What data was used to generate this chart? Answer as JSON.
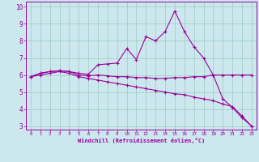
{
  "xlabel": "Windchill (Refroidissement éolien,°C)",
  "bg_color": "#cce8ee",
  "line_color": "#990099",
  "grid_color": "#99ccbb",
  "x_values": [
    0,
    1,
    2,
    3,
    4,
    5,
    6,
    7,
    8,
    9,
    10,
    11,
    12,
    13,
    14,
    15,
    16,
    17,
    18,
    19,
    20,
    21,
    22,
    23
  ],
  "line1_y": [
    5.9,
    6.1,
    6.2,
    6.25,
    6.2,
    6.1,
    6.05,
    6.6,
    6.65,
    6.7,
    7.55,
    6.9,
    8.25,
    8.0,
    8.55,
    9.75,
    8.55,
    7.65,
    7.0,
    6.0,
    4.6,
    4.1,
    3.5,
    3.0
  ],
  "line2_y": [
    5.9,
    6.1,
    6.2,
    6.25,
    6.2,
    6.0,
    5.95,
    6.0,
    5.95,
    5.9,
    5.9,
    5.85,
    5.85,
    5.8,
    5.8,
    5.85,
    5.85,
    5.9,
    5.9,
    6.0,
    6.0,
    6.0,
    6.0,
    6.0
  ],
  "line3_y": [
    5.9,
    6.0,
    6.1,
    6.2,
    6.1,
    5.9,
    5.8,
    5.7,
    5.6,
    5.5,
    5.4,
    5.3,
    5.2,
    5.1,
    5.0,
    4.9,
    4.85,
    4.7,
    4.6,
    4.5,
    4.3,
    4.15,
    3.6,
    3.0
  ],
  "ylim": [
    2.8,
    10.3
  ],
  "xlim": [
    -0.5,
    23.5
  ],
  "yticks": [
    3,
    4,
    5,
    6,
    7,
    8,
    9,
    10
  ],
  "xticks": [
    0,
    1,
    2,
    3,
    4,
    5,
    6,
    7,
    8,
    9,
    10,
    11,
    12,
    13,
    14,
    15,
    16,
    17,
    18,
    19,
    20,
    21,
    22,
    23
  ]
}
